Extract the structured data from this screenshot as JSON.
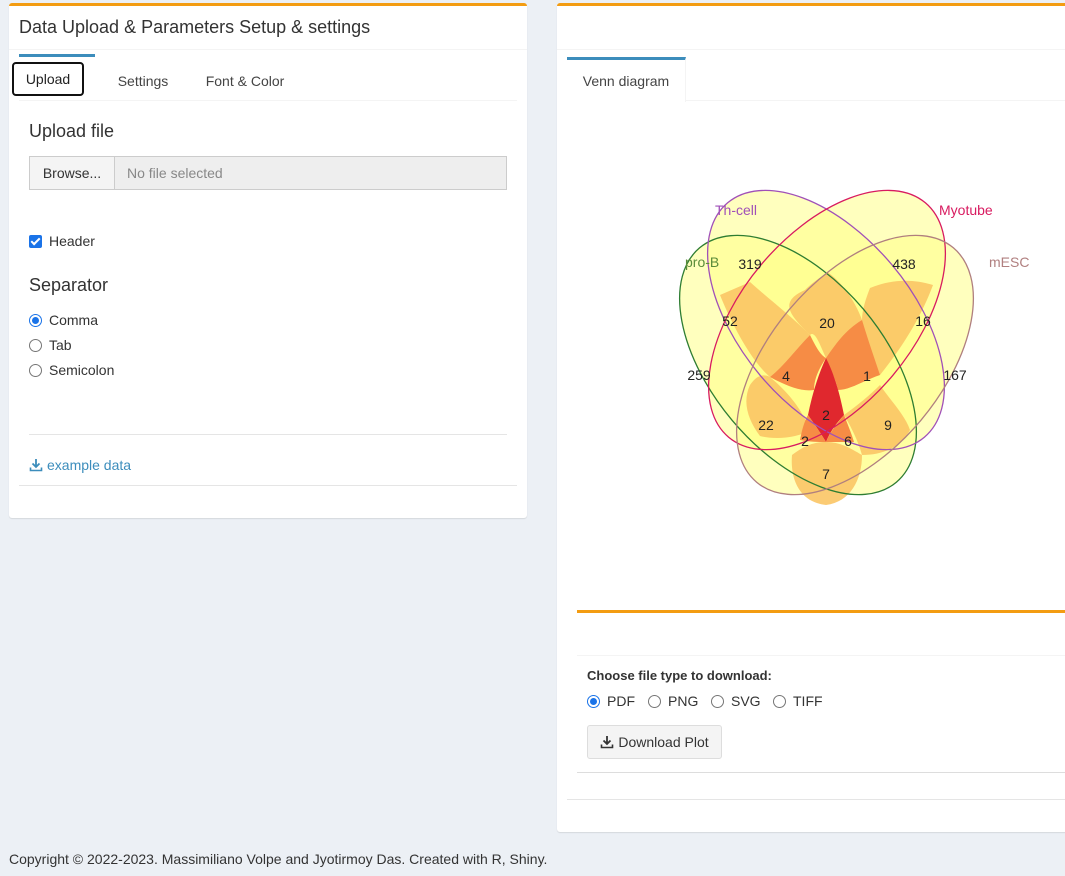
{
  "left_panel": {
    "title": "Data Upload & Parameters Setup & settings",
    "tabs": [
      "Upload",
      "Settings",
      "Font & Color"
    ],
    "upload_heading": "Upload file",
    "browse_label": "Browse...",
    "file_placeholder": "No file selected",
    "header_label": "Header",
    "header_checked": true,
    "separator_heading": "Separator",
    "separator_options": [
      "Comma",
      "Tab",
      "Semicolon"
    ],
    "separator_selected": "Comma",
    "example_link": "example data"
  },
  "right_panel": {
    "tab_label": "Venn diagram",
    "download_heading": "Choose file type to download:",
    "file_types": [
      "PDF",
      "PNG",
      "SVG",
      "TIFF"
    ],
    "file_type_selected": "PDF",
    "download_button": "Download Plot"
  },
  "venn": {
    "sets": [
      {
        "name": "pro-B",
        "color": "#2e7d32"
      },
      {
        "name": "Th-cell",
        "color": "#a050b8"
      },
      {
        "name": "Myotube",
        "color": "#d81b60"
      },
      {
        "name": "mESC",
        "color": "#b07f7f"
      }
    ],
    "regions": {
      "A": "259",
      "B": "319",
      "C": "438",
      "D": "167",
      "AB": "52",
      "BC": "20",
      "CD": "16",
      "ABC": "4",
      "BCD": "1",
      "ABCD": "2",
      "AC": "22",
      "BD": "9",
      "ACD": "2",
      "ABD": "6",
      "AD": "7"
    }
  },
  "footer": "Copyright © 2022-2023. Massimiliano Volpe and Jyotirmoy Das. Created with R, Shiny."
}
